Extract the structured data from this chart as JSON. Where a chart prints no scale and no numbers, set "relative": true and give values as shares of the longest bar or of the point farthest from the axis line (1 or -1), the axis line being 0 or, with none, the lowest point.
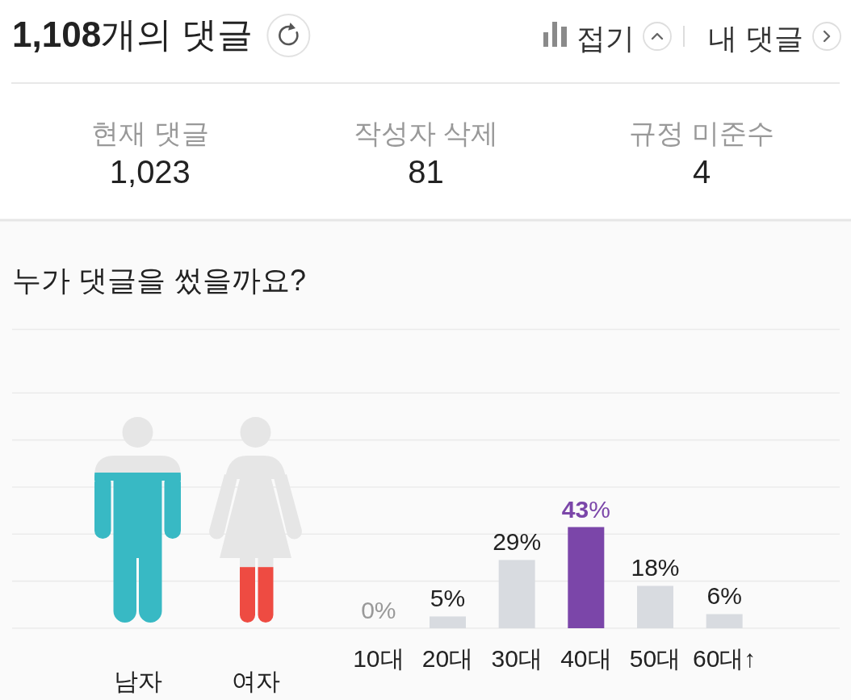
{
  "chart_data": [
    {
      "type": "other",
      "title": "1,108개의 댓글",
      "categories": [
        "현재 댓글",
        "작성자 삭제",
        "규정 미준수"
      ],
      "value_labels": [
        "1,023",
        "81",
        "4"
      ],
      "annotations": [
        "접기",
        "내 댓글"
      ]
    },
    {
      "type": "bar",
      "title": "누가 댓글을 썼을까요?",
      "relative": true,
      "categories": [
        "남자",
        "여자"
      ],
      "values": [
        1,
        0.37
      ],
      "colors": [
        "#38b9c4",
        "#ee4b42"
      ]
    },
    {
      "type": "bar",
      "categories": [
        "10대",
        "20대",
        "30대",
        "40대",
        "50대",
        "60대↑"
      ],
      "values": [
        0,
        5,
        29,
        43,
        18,
        6
      ],
      "value_labels": [
        "0%",
        "5%",
        "29%",
        "43%",
        "18%",
        "6%"
      ],
      "colors": [
        "#d8dbe0",
        "#d8dbe0",
        "#d8dbe0",
        "#7b46a9",
        "#d8dbe0",
        "#d8dbe0"
      ],
      "ylim": [
        0,
        127
      ],
      "yticks": [
        {
          "value": 0,
          "label": null
        },
        {
          "value": 20,
          "label": null
        },
        {
          "value": 40,
          "label": null
        },
        {
          "value": 60,
          "label": null
        },
        {
          "value": 80,
          "label": null
        },
        {
          "value": 100,
          "label": null
        }
      ],
      "grid": "y",
      "tick_labels": "x"
    }
  ]
}
